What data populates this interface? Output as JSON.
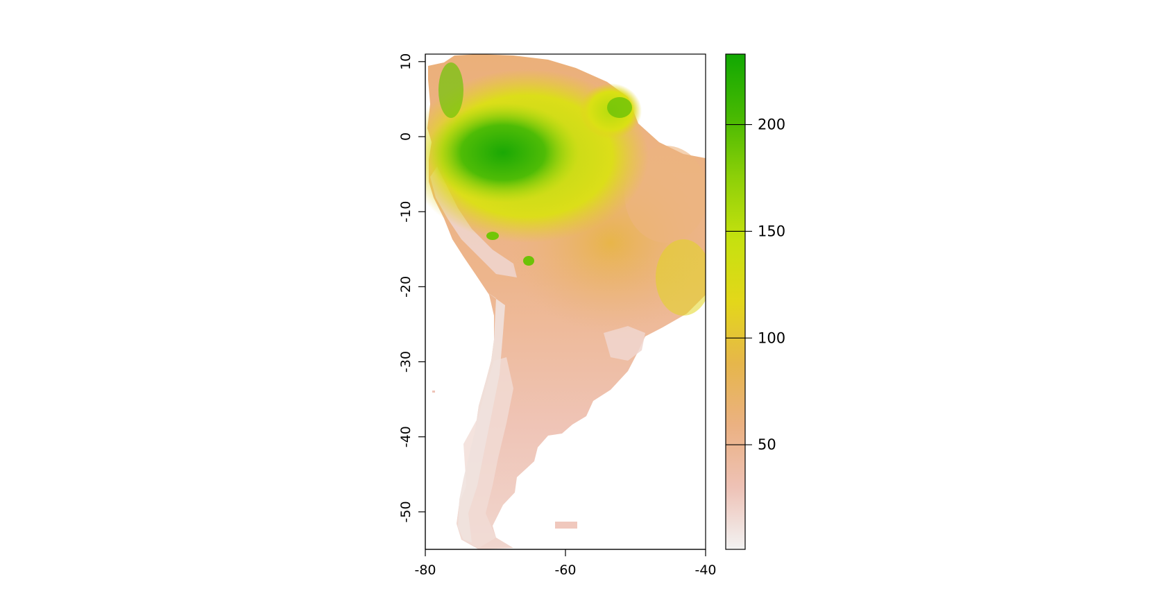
{
  "map": {
    "x_axis": {
      "range": [
        -80,
        -40
      ],
      "ticks": [
        -80,
        -60,
        -40
      ],
      "tick_labels": [
        "-80",
        "-60",
        "-40"
      ]
    },
    "y_axis": {
      "range": [
        -55,
        11
      ],
      "ticks": [
        10,
        0,
        -10,
        -20,
        -30,
        -40,
        -50
      ],
      "tick_labels": [
        "10",
        "0",
        "-10",
        "-20",
        "-30",
        "-40",
        "-50"
      ]
    },
    "colorbar": {
      "range": [
        1,
        233
      ],
      "ticks": [
        50,
        100,
        150,
        200
      ],
      "tick_labels": [
        "50",
        "100",
        "150",
        "200"
      ],
      "colors": [
        "#f2f2f2",
        "#eec2b6",
        "#ebb182",
        "#e6b64b",
        "#e3d71a",
        "#c6e10f",
        "#8ed008",
        "#47b902",
        "#11a802"
      ]
    },
    "background_color": "#ffffff"
  }
}
